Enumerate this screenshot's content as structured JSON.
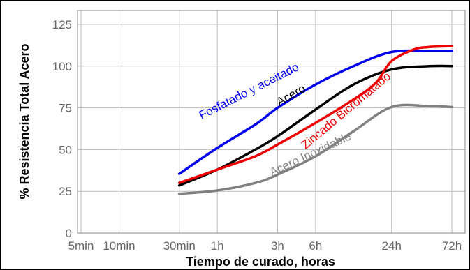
{
  "chart_data": {
    "type": "line",
    "title": "",
    "xlabel": "Tiempo de curado, horas",
    "ylabel": "% Resistencia Total Acero",
    "x_scale": "log",
    "x_ticks": [
      {
        "label": "5min",
        "hours": 0.0833
      },
      {
        "label": "10min",
        "hours": 0.1667
      },
      {
        "label": "30min",
        "hours": 0.5
      },
      {
        "label": "1h",
        "hours": 1
      },
      {
        "label": "3h",
        "hours": 3
      },
      {
        "label": "6h",
        "hours": 6
      },
      {
        "label": "24h",
        "hours": 24
      },
      {
        "label": "72h",
        "hours": 72
      }
    ],
    "y_ticks": [
      0,
      25,
      50,
      75,
      100,
      125
    ],
    "xlim_hours": [
      0.0833,
      72
    ],
    "ylim": [
      0,
      125
    ],
    "grid": true,
    "legend": "none",
    "series": [
      {
        "name": "Fosfatado y aceitado",
        "color": "#0000ee",
        "points": [
          [
            0.5,
            35.5
          ],
          [
            1,
            51
          ],
          [
            2,
            65
          ],
          [
            3,
            75
          ],
          [
            6,
            89
          ],
          [
            12,
            100
          ],
          [
            24,
            108.5
          ],
          [
            48,
            109
          ],
          [
            72,
            109
          ]
        ]
      },
      {
        "name": "Acero",
        "color": "#000000",
        "points": [
          [
            0.5,
            28.5
          ],
          [
            1,
            38
          ],
          [
            2,
            50
          ],
          [
            3,
            58
          ],
          [
            6,
            74
          ],
          [
            12,
            89
          ],
          [
            24,
            98
          ],
          [
            48,
            100
          ],
          [
            72,
            100
          ]
        ]
      },
      {
        "name": "Zincado Bicromatado",
        "color": "#ee0000",
        "points": [
          [
            0.5,
            30
          ],
          [
            1,
            38
          ],
          [
            2,
            46
          ],
          [
            3,
            53
          ],
          [
            6,
            66
          ],
          [
            12,
            80
          ],
          [
            18,
            90
          ],
          [
            24,
            103
          ],
          [
            36,
            110
          ],
          [
            48,
            111.5
          ],
          [
            72,
            112
          ]
        ]
      },
      {
        "name": "Acero Inoxidable",
        "color": "#808080",
        "points": [
          [
            0.5,
            23.5
          ],
          [
            1,
            25.5
          ],
          [
            2,
            30
          ],
          [
            3,
            35
          ],
          [
            6,
            46
          ],
          [
            12,
            61
          ],
          [
            24,
            75.5
          ],
          [
            48,
            76
          ],
          [
            72,
            75.5
          ]
        ]
      }
    ]
  }
}
